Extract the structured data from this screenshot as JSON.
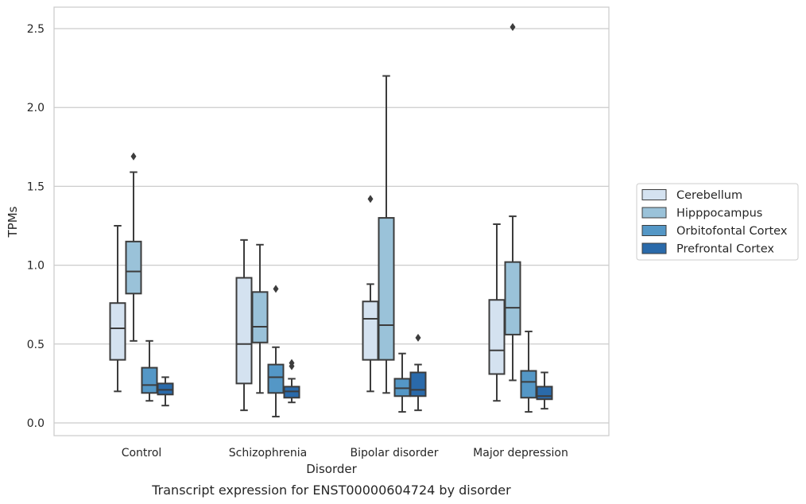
{
  "chart_data": {
    "type": "box",
    "caption": "Transcript expression for ENST00000604724 by disorder",
    "xlabel": "Disorder",
    "ylabel": "TPMs",
    "ylim": [
      -0.08,
      2.64
    ],
    "yticks": [
      0.0,
      0.5,
      1.0,
      1.5,
      2.0,
      2.5
    ],
    "grid": "horizontal",
    "legend_position": "right",
    "categories": [
      "Control",
      "Schizophrenia",
      "Bipolar disorder",
      "Major depression"
    ],
    "series": [
      {
        "name": "Cerebellum",
        "color": "#d4e2f0",
        "boxes": [
          {
            "min": 0.2,
            "q1": 0.4,
            "median": 0.6,
            "q3": 0.76,
            "max": 1.25,
            "outliers": []
          },
          {
            "min": 0.08,
            "q1": 0.25,
            "median": 0.5,
            "q3": 0.92,
            "max": 1.16,
            "outliers": []
          },
          {
            "min": 0.2,
            "q1": 0.4,
            "median": 0.66,
            "q3": 0.77,
            "max": 0.88,
            "outliers": [
              1.42
            ]
          },
          {
            "min": 0.14,
            "q1": 0.31,
            "median": 0.46,
            "q3": 0.78,
            "max": 1.26,
            "outliers": []
          }
        ]
      },
      {
        "name": "Hipppocampus",
        "color": "#9ac2d9",
        "boxes": [
          {
            "min": 0.52,
            "q1": 0.82,
            "median": 0.96,
            "q3": 1.15,
            "max": 1.59,
            "outliers": [
              1.69
            ]
          },
          {
            "min": 0.19,
            "q1": 0.51,
            "median": 0.61,
            "q3": 0.83,
            "max": 1.13,
            "outliers": []
          },
          {
            "min": 0.19,
            "q1": 0.4,
            "median": 0.62,
            "q3": 1.3,
            "max": 2.2,
            "outliers": []
          },
          {
            "min": 0.27,
            "q1": 0.56,
            "median": 0.73,
            "q3": 1.02,
            "max": 1.31,
            "outliers": [
              2.51
            ]
          }
        ]
      },
      {
        "name": "Orbitofontal Cortex",
        "color": "#5497c6",
        "boxes": [
          {
            "min": 0.14,
            "q1": 0.19,
            "median": 0.24,
            "q3": 0.35,
            "max": 0.52,
            "outliers": []
          },
          {
            "min": 0.04,
            "q1": 0.19,
            "median": 0.29,
            "q3": 0.37,
            "max": 0.48,
            "outliers": [
              0.85
            ]
          },
          {
            "min": 0.07,
            "q1": 0.17,
            "median": 0.22,
            "q3": 0.28,
            "max": 0.44,
            "outliers": []
          },
          {
            "min": 0.07,
            "q1": 0.16,
            "median": 0.26,
            "q3": 0.33,
            "max": 0.58,
            "outliers": []
          }
        ]
      },
      {
        "name": "Prefrontal Cortex",
        "color": "#2a6aaa",
        "boxes": [
          {
            "min": 0.11,
            "q1": 0.18,
            "median": 0.21,
            "q3": 0.25,
            "max": 0.29,
            "outliers": []
          },
          {
            "min": 0.13,
            "q1": 0.16,
            "median": 0.2,
            "q3": 0.23,
            "max": 0.28,
            "outliers": [
              0.36,
              0.38
            ]
          },
          {
            "min": 0.08,
            "q1": 0.17,
            "median": 0.21,
            "q3": 0.32,
            "max": 0.37,
            "outliers": [
              0.54
            ]
          },
          {
            "min": 0.09,
            "q1": 0.15,
            "median": 0.17,
            "q3": 0.23,
            "max": 0.32,
            "outliers": []
          }
        ]
      }
    ]
  }
}
